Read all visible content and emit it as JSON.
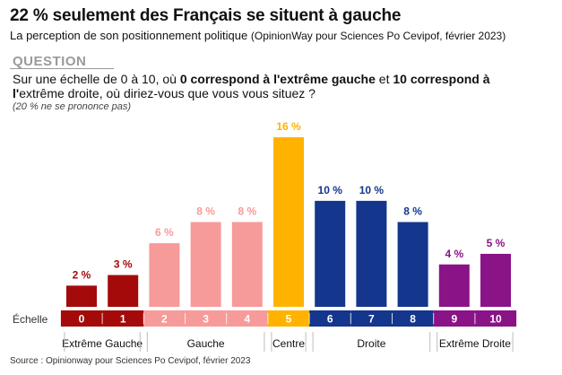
{
  "header": {
    "title": "22 % seulement des Français se situent à gauche",
    "subtitle": "La perception de son positionnement politique",
    "subtitle_source": "(OpinionWay pour Sciences Po Cevipof, février 2023)"
  },
  "question": {
    "label": "QUESTION",
    "text_1": "Sur une échelle de 0 à 10, où ",
    "bold_1": "0 correspond à l'extrême gauche",
    "text_2": " et ",
    "bold_2": "10 correspond à l'",
    "text_3": "extrême droite, où diriez-vous que vous vous situez ?",
    "note": "(20 % ne se prononce pas)"
  },
  "source": "Source : Opinionway pour Sciences Po Cevipof, février 2023",
  "colors": {
    "extreme_gauche": "#a50a0a",
    "gauche": "#f79a9a",
    "centre": "#ffb300",
    "droite": "#14368c",
    "extreme_droite": "#8a1387"
  },
  "chart_data": {
    "type": "bar",
    "scale_label": "Échelle",
    "categories": [
      "0",
      "1",
      "2",
      "3",
      "4",
      "5",
      "6",
      "7",
      "8",
      "9",
      "10"
    ],
    "values": [
      2,
      3,
      6,
      8,
      8,
      16,
      10,
      10,
      8,
      4,
      5
    ],
    "value_labels": [
      "2 %",
      "3 %",
      "6 %",
      "8 %",
      "8 %",
      "16 %",
      "10 %",
      "10 %",
      "8 %",
      "4 %",
      "5 %"
    ],
    "bar_groups": [
      "extreme_gauche",
      "extreme_gauche",
      "gauche",
      "gauche",
      "gauche",
      "centre",
      "droite",
      "droite",
      "droite",
      "extreme_droite",
      "extreme_droite"
    ],
    "groups": [
      {
        "key": "extreme_gauche",
        "label": "Extrême Gauche",
        "from": 0,
        "to": 1
      },
      {
        "key": "gauche",
        "label": "Gauche",
        "from": 2,
        "to": 4
      },
      {
        "key": "centre",
        "label": "Centre",
        "from": 5,
        "to": 5
      },
      {
        "key": "droite",
        "label": "Droite",
        "from": 6,
        "to": 8
      },
      {
        "key": "extreme_droite",
        "label": "Extrême Droite",
        "from": 9,
        "to": 10
      }
    ],
    "ylim": [
      0,
      16
    ]
  }
}
